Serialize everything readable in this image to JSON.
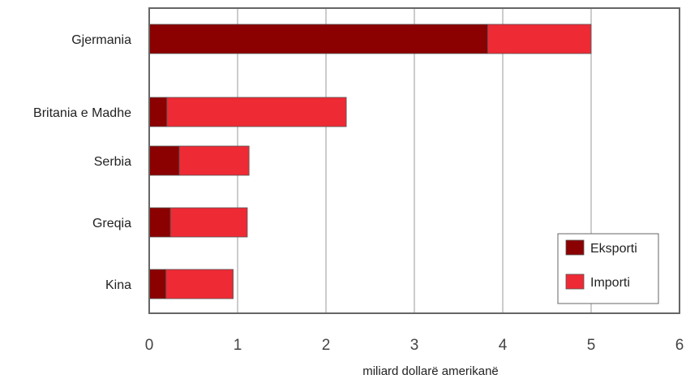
{
  "chart_data": {
    "type": "bar",
    "orientation": "horizontal",
    "stacked": true,
    "categories": [
      "Gjermania",
      "Britania e Madhe",
      "Serbia",
      "Greqia",
      "Kina"
    ],
    "series": [
      {
        "name": "Eksporti",
        "values": [
          3.83,
          0.2,
          0.34,
          0.24,
          0.19
        ]
      },
      {
        "name": "Importi",
        "values": [
          1.17,
          2.03,
          0.79,
          0.87,
          0.76
        ]
      }
    ],
    "xlabel": "miliard dollarë amerikanë",
    "ylabel": "",
    "xlim": [
      0,
      6
    ],
    "xticks": [
      "0",
      "1",
      "2",
      "3",
      "4",
      "5",
      "6"
    ],
    "grid": "vertical",
    "legend_position": "bottom-right",
    "colors": {
      "Eksporti": "#8b0000",
      "Importi": "#ee2a35",
      "grid": "#999999",
      "frame": "#666666"
    }
  }
}
